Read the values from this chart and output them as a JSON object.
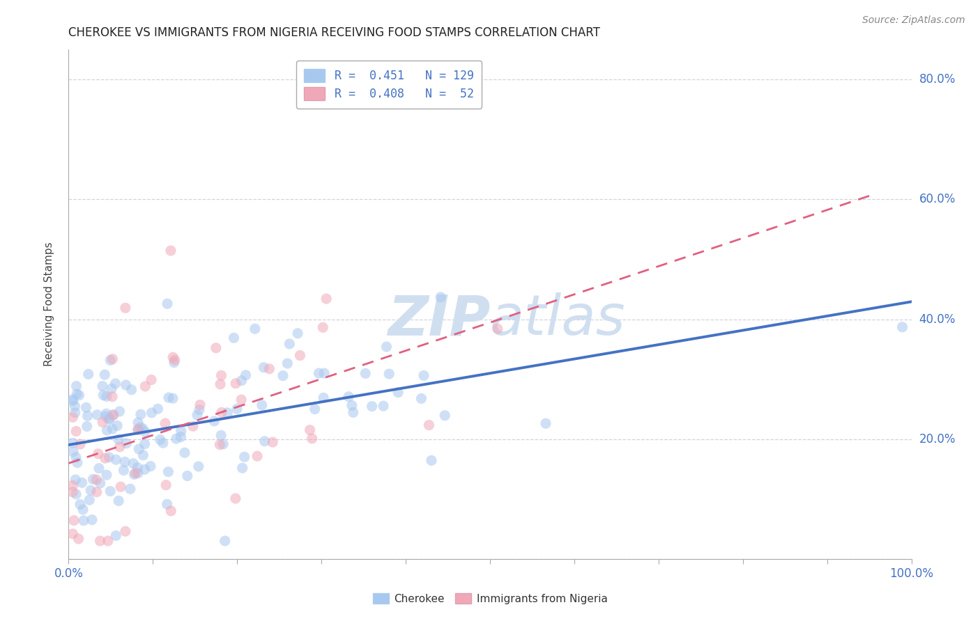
{
  "title": "CHEROKEE VS IMMIGRANTS FROM NIGERIA RECEIVING FOOD STAMPS CORRELATION CHART",
  "source": "Source: ZipAtlas.com",
  "ylabel": "Receiving Food Stamps",
  "xlim": [
    0,
    100
  ],
  "ylim": [
    0,
    85
  ],
  "legend_r1": "R =  0.451",
  "legend_n1": "N = 129",
  "legend_r2": "R =  0.408",
  "legend_n2": "N =  52",
  "color_cherokee": "#a8c8f0",
  "color_nigeria": "#f0a8b8",
  "color_cherokee_line": "#4472c4",
  "color_nigeria_line": "#e06080",
  "color_legend_text": "#4472c4",
  "background_color": "#ffffff",
  "grid_color": "#c8c8d8",
  "watermark_color": "#d0dff0",
  "cherokee_seed": 77,
  "nigeria_seed": 55,
  "cherokee_n": 129,
  "nigeria_n": 52,
  "cherokee_r": 0.451,
  "nigeria_r": 0.408,
  "cherokee_x_scale": 15,
  "nigeria_x_scale": 12,
  "cherokee_y_mean": 22,
  "cherokee_y_std": 8,
  "nigeria_y_mean": 22,
  "nigeria_y_std": 10,
  "point_size": 120,
  "point_alpha": 0.55
}
